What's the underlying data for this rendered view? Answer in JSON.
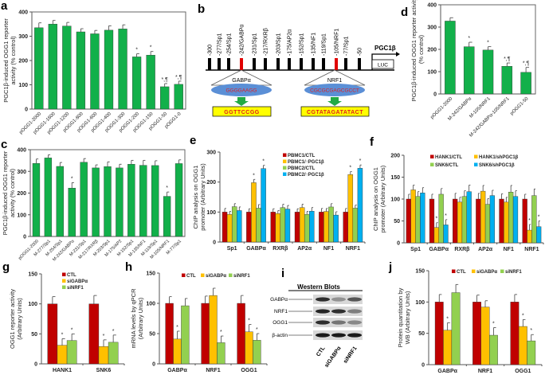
{
  "colors": {
    "green": "#12b04a",
    "red": "#c00000",
    "yellow": "#ffc000",
    "lightgreen": "#92d050",
    "blue": "#00b0f0",
    "seq_red": "#e02020",
    "seq_green": "#2a9a2a",
    "ellipse": "#5b8fd6",
    "seqbox": "#ffff00"
  },
  "chart_data": [
    {
      "panel": "a",
      "type": "bar",
      "ylabel": [
        "PGC1β-induced OGG1 reporter",
        "activity (% control)"
      ],
      "ylim": [
        0,
        400
      ],
      "yticks": [
        0,
        100,
        200,
        300,
        400
      ],
      "categories": [
        "pOGG1-2000",
        "pOGG1-1600",
        "pOGG1-1200",
        "pOGG1-800",
        "pOGG1-600",
        "pOGG1-400",
        "pOGG1-300",
        "pOGG1-200",
        "pOGG1-150",
        "pOGG1-50",
        "pOGG1-0"
      ],
      "series": [
        {
          "name": "PGC1β-induced",
          "color": "green",
          "values": [
            335,
            350,
            342,
            318,
            310,
            325,
            330,
            215,
            222,
            92,
            102
          ],
          "errors": [
            20,
            15,
            15,
            13,
            14,
            18,
            17,
            13,
            15,
            13,
            13
          ],
          "markers": [
            "",
            "",
            "",
            "",
            "",
            "",
            "",
            "*",
            "*",
            "*,¶",
            "*,¶"
          ]
        }
      ]
    },
    {
      "panel": "c",
      "type": "bar",
      "ylabel": [
        "PGC1β-induced OGG1 reporter",
        "activity (% control)"
      ],
      "ylim": [
        0,
        400
      ],
      "yticks": [
        0,
        100,
        200,
        300,
        400
      ],
      "categories": [
        "pOGG1-2000",
        "M-277/Sp1",
        "M-254/Sp1",
        "M-242/GABPα",
        "M-231/Sp1",
        "M-217/RXRβ",
        "M-203/Sp1",
        "M-175/AP2",
        "M-152/Sp1",
        "M-135/NF1",
        "M-119/Sp1",
        "M-105/NRF1",
        "M-77/Sp1"
      ],
      "series": [
        {
          "name": "PGC1β-induced",
          "color": "green",
          "values": [
            337,
            362,
            323,
            223,
            342,
            316,
            322,
            316,
            333,
            328,
            327,
            185,
            336
          ],
          "errors": [
            20,
            14,
            18,
            25,
            17,
            14,
            22,
            17,
            18,
            23,
            22,
            20,
            17
          ],
          "markers": [
            "",
            "",
            "",
            "*",
            "",
            "",
            "",
            "",
            "",
            "",
            "",
            "*",
            ""
          ]
        }
      ]
    },
    {
      "panel": "d",
      "type": "bar",
      "ylabel": [
        "PGC1β-induced OGG1 reporter activity",
        "(% control)"
      ],
      "ylim": [
        0,
        400
      ],
      "yticks": [
        0,
        100,
        200,
        300,
        400
      ],
      "categories": [
        "pOGG1-2000",
        "M-242/GABPα",
        "M-105/NRF1",
        "M-242/GABPα-105/NRF1",
        "pOGG1-50"
      ],
      "series": [
        {
          "name": "PGC1β-induced",
          "color": "green",
          "values": [
            327,
            212,
            197,
            124,
            97
          ],
          "errors": [
            15,
            20,
            15,
            15,
            22
          ],
          "markers": [
            "",
            "*",
            "*",
            "*,¶",
            "*,¶"
          ]
        }
      ]
    },
    {
      "panel": "e",
      "type": "bar",
      "ylabel": [
        "ChIP analysis on OGG1",
        "promoter (Arbitrary Units)"
      ],
      "ylim": [
        0,
        300
      ],
      "yticks": [
        0,
        100,
        200,
        300
      ],
      "categories": [
        "Sp1",
        "GABPα",
        "RXRβ",
        "AP2α",
        "NF1",
        "NRF1"
      ],
      "series": [
        {
          "name": "PBMC1/CTL",
          "color": "red",
          "values": [
            100,
            100,
            100,
            100,
            100,
            100
          ],
          "errors": [
            12,
            11,
            11,
            11,
            12,
            12
          ],
          "markers": [
            "",
            "",
            "",
            "",
            "",
            ""
          ]
        },
        {
          "name": "PBMC1/↑PGC1β",
          "color": "yellow",
          "values": [
            92,
            198,
            95,
            115,
            102,
            225
          ],
          "errors": [
            10,
            11,
            10,
            11,
            10,
            10
          ],
          "markers": [
            "",
            "*",
            "",
            "",
            "",
            "*"
          ]
        },
        {
          "name": "PBMC2/CTL",
          "color": "lightgreen",
          "values": [
            118,
            113,
            115,
            92,
            117,
            113
          ],
          "errors": [
            10,
            12,
            11,
            10,
            11,
            10
          ],
          "markers": [
            "",
            "",
            "",
            "",
            "",
            ""
          ]
        },
        {
          "name": "PBMC2/↑PGC1β",
          "color": "blue",
          "values": [
            105,
            245,
            110,
            103,
            90,
            246
          ],
          "errors": [
            12,
            11,
            12,
            12,
            11,
            11
          ],
          "markers": [
            "",
            "*",
            "",
            "",
            "",
            "*"
          ]
        }
      ]
    },
    {
      "panel": "f",
      "type": "bar",
      "ylabel": [
        "ChIP analysis on OGG1",
        "promoter (Arbitrary Units)"
      ],
      "ylim": [
        0,
        200
      ],
      "yticks": [
        0,
        50,
        100,
        150,
        200
      ],
      "categories": [
        "Sp1",
        "GABPα",
        "RXRβ",
        "AP2α",
        "NF1",
        "NRF1"
      ],
      "series": [
        {
          "name": "HANK1/CTL",
          "color": "red",
          "values": [
            100,
            100,
            100,
            100,
            100,
            100
          ],
          "errors": [
            11,
            11,
            13,
            13,
            12,
            11
          ],
          "markers": [
            "",
            "",
            "",
            "",
            "",
            ""
          ]
        },
        {
          "name": "HANK1/shPGC1β",
          "color": "yellow",
          "values": [
            121,
            35,
            93,
            118,
            93,
            29
          ],
          "errors": [
            11,
            11,
            11,
            13,
            11,
            13
          ],
          "markers": [
            "",
            "*",
            "",
            "",
            "",
            "*"
          ]
        },
        {
          "name": "SNK6/CTL",
          "color": "lightgreen",
          "values": [
            106,
            111,
            106,
            88,
            116,
            108
          ],
          "errors": [
            11,
            13,
            13,
            13,
            15,
            15
          ],
          "markers": [
            "",
            "",
            "",
            "",
            "",
            ""
          ]
        },
        {
          "name": "SNK6/shPGC1β",
          "color": "blue",
          "values": [
            114,
            41,
            117,
            108,
            106,
            37
          ],
          "errors": [
            12,
            12,
            15,
            12,
            13,
            13
          ],
          "markers": [
            "",
            "*",
            "",
            "",
            "",
            "*"
          ]
        }
      ]
    },
    {
      "panel": "g",
      "type": "bar",
      "ylabel": [
        "OGG1 reporter activity",
        "(Arbitrary Units)"
      ],
      "ylim": [
        0,
        150
      ],
      "yticks": [
        0,
        50,
        100,
        150
      ],
      "categories": [
        "HANK1",
        "SNK6"
      ],
      "series": [
        {
          "name": "CTL",
          "color": "red",
          "values": [
            100,
            100
          ],
          "errors": [
            12,
            14
          ],
          "markers": [
            "",
            ""
          ]
        },
        {
          "name": "siGABPα",
          "color": "yellow",
          "values": [
            31,
            29
          ],
          "errors": [
            11,
            11
          ],
          "markers": [
            "*",
            "*"
          ]
        },
        {
          "name": "siNRF1",
          "color": "lightgreen",
          "values": [
            39,
            36
          ],
          "errors": [
            11,
            12
          ],
          "markers": [
            "*",
            "*"
          ]
        }
      ]
    },
    {
      "panel": "h",
      "type": "bar",
      "ylabel": [
        "mRNA levels by qPCR",
        "(Arbitrary Units)"
      ],
      "ylim": [
        0,
        150
      ],
      "yticks": [
        0,
        50,
        100,
        150
      ],
      "categories": [
        "GABPα",
        "NRF1",
        "OGG1"
      ],
      "series": [
        {
          "name": "CTL",
          "color": "red",
          "values": [
            100,
            100,
            100
          ],
          "errors": [
            11,
            12,
            13
          ],
          "markers": [
            "",
            "",
            ""
          ]
        },
        {
          "name": "siGABPα",
          "color": "yellow",
          "values": [
            41,
            113,
            53
          ],
          "errors": [
            13,
            12,
            12
          ],
          "markers": [
            "*",
            "",
            "*"
          ]
        },
        {
          "name": "siNRF1",
          "color": "lightgreen",
          "values": [
            96,
            35,
            39
          ],
          "errors": [
            12,
            11,
            11
          ],
          "markers": [
            "",
            "*",
            "*"
          ]
        }
      ]
    },
    {
      "panel": "j",
      "type": "bar",
      "ylabel": [
        "Protein quantitation by",
        "WB (Arbitrary Units)"
      ],
      "ylim": [
        0,
        150
      ],
      "yticks": [
        0,
        50,
        100,
        150
      ],
      "categories": [
        "GABPα",
        "NRF1",
        "OGG1"
      ],
      "series": [
        {
          "name": "CTL",
          "color": "red",
          "values": [
            100,
            100,
            100
          ],
          "errors": [
            12,
            11,
            12
          ],
          "markers": [
            "",
            "",
            ""
          ]
        },
        {
          "name": "siGABPα",
          "color": "yellow",
          "values": [
            55,
            92,
            61
          ],
          "errors": [
            12,
            10,
            11
          ],
          "markers": [
            "*",
            "",
            "*"
          ]
        },
        {
          "name": "siNRF1",
          "color": "lightgreen",
          "values": [
            115,
            47,
            38
          ],
          "errors": [
            13,
            12,
            10
          ],
          "markers": [
            "",
            "*",
            "*"
          ]
        }
      ]
    }
  ],
  "diagram_b": {
    "panel": "b",
    "sites": [
      {
        "label": "-300",
        "highlight": false
      },
      {
        "label": "-277/Sp1",
        "highlight": false
      },
      {
        "label": "-254/Sp1",
        "highlight": false
      },
      {
        "label": "-242/GABPα",
        "highlight": true
      },
      {
        "label": "-231/Sp1",
        "highlight": false
      },
      {
        "label": "-217/RXRβ",
        "highlight": false
      },
      {
        "label": "-203/Sp1",
        "highlight": false
      },
      {
        "label": "-175/AP2α",
        "highlight": false
      },
      {
        "label": "-152/Sp1",
        "highlight": false
      },
      {
        "label": "-135/NF1",
        "highlight": false
      },
      {
        "label": "-119/Sp1",
        "highlight": false
      },
      {
        "label": "-105/NRF1",
        "highlight": true
      },
      {
        "label": "-77/Sp1",
        "highlight": false
      },
      {
        "label": "-50",
        "highlight": false
      }
    ],
    "promoter_label": "PGC1β",
    "reporter_label": "LUC",
    "motifs": [
      {
        "factor": "GABPα",
        "wild_type": "GGGGAAGG",
        "mutant": "GGTTCCGG"
      },
      {
        "factor": "NRF1",
        "wild_type": "CGCGCGAGCGCCT",
        "mutant": "CGTATAGATATACT"
      }
    ]
  },
  "western_i": {
    "panel": "i",
    "title": "Western Blots",
    "rows": [
      "GABPα",
      "NRF1",
      "OGG1",
      "β-actin"
    ],
    "lanes": [
      "CTL",
      "siGABPα",
      "siNRF1"
    ],
    "band_intensity": [
      [
        0.85,
        0.35,
        0.65
      ],
      [
        0.9,
        0.85,
        0.45
      ],
      [
        0.85,
        0.5,
        0.4
      ],
      [
        0.95,
        0.95,
        0.95
      ]
    ]
  }
}
